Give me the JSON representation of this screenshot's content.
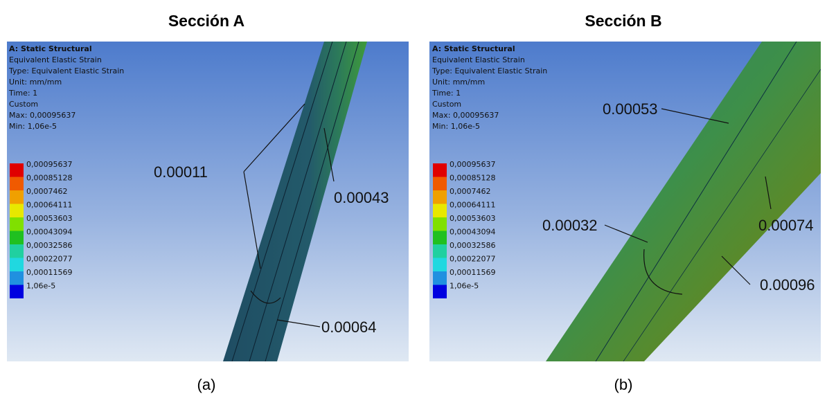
{
  "panels": [
    {
      "title": "Sección A",
      "caption": "(a)",
      "info": [
        "A: Static Structural",
        "Equivalent Elastic Strain",
        "Type: Equivalent Elastic Strain",
        "Unit: mm/mm",
        "Time: 1",
        "Custom",
        "Max: 0,00095637",
        "Min: 1,06e-5"
      ],
      "legend": [
        "0,00095637",
        "0,00085128",
        "0,0007462",
        "0,00064111",
        "0,00053603",
        "0,00043094",
        "0,00032586",
        "0,00022077",
        "0,00011569",
        "1,06e-5"
      ],
      "annotations": [
        "0.00011",
        "0.00043",
        "0.00064"
      ]
    },
    {
      "title": "Sección B",
      "caption": "(b)",
      "info": [
        "A: Static Structural",
        "Equivalent Elastic Strain",
        "Type: Equivalent Elastic Strain",
        "Unit: mm/mm",
        "Time: 1",
        "Custom",
        "Max: 0,00095637",
        "Min: 1,06e-5"
      ],
      "legend": [
        "0,00095637",
        "0,00085128",
        "0,0007462",
        "0,00064111",
        "0,00053603",
        "0,00043094",
        "0,00032586",
        "0,00022077",
        "0,00011569",
        "1,06e-5"
      ],
      "annotations": [
        "0.00053",
        "0.00032",
        "0.00074",
        "0.00096"
      ]
    }
  ]
}
